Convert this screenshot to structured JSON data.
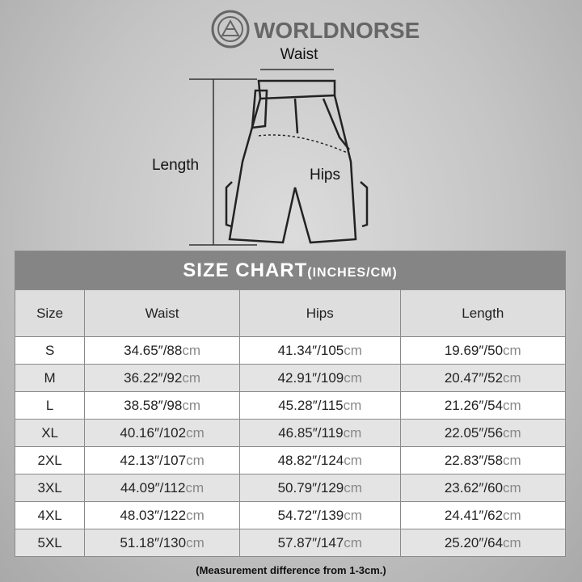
{
  "brand": "WORLDNORSE",
  "diagram": {
    "waist": "Waist",
    "length": "Length",
    "hips": "Hips"
  },
  "table": {
    "title": "SIZE CHART",
    "title_units": "(INCHES/CM)",
    "header": [
      "Size",
      "Waist",
      "Hips",
      "Length"
    ],
    "rows": [
      [
        "S",
        {
          "value": "34.65″/88",
          "unit": "cm"
        },
        {
          "value": "41.34″/105",
          "unit": "cm"
        },
        {
          "value": "19.69″/50",
          "unit": "cm"
        }
      ],
      [
        "M",
        {
          "value": "36.22″/92",
          "unit": "cm"
        },
        {
          "value": "42.91″/109",
          "unit": "cm"
        },
        {
          "value": "20.47″/52",
          "unit": "cm"
        }
      ],
      [
        "L",
        {
          "value": "38.58″/98",
          "unit": "cm"
        },
        {
          "value": "45.28″/115",
          "unit": "cm"
        },
        {
          "value": "21.26″/54",
          "unit": "cm"
        }
      ],
      [
        "XL",
        {
          "value": "40.16″/102",
          "unit": "cm"
        },
        {
          "value": "46.85″/119",
          "unit": "cm"
        },
        {
          "value": "22.05″/56",
          "unit": "cm"
        }
      ],
      [
        "2XL",
        {
          "value": "42.13″/107",
          "unit": "cm"
        },
        {
          "value": "48.82″/124",
          "unit": "cm"
        },
        {
          "value": "22.83″/58",
          "unit": "cm"
        }
      ],
      [
        "3XL",
        {
          "value": "44.09″/112",
          "unit": "cm"
        },
        {
          "value": "50.79″/129",
          "unit": "cm"
        },
        {
          "value": "23.62″/60",
          "unit": "cm"
        }
      ],
      [
        "4XL",
        {
          "value": "48.03″/122",
          "unit": "cm"
        },
        {
          "value": "54.72″/139",
          "unit": "cm"
        },
        {
          "value": "24.41″/62",
          "unit": "cm"
        }
      ],
      [
        "5XL",
        {
          "value": "51.18″/130",
          "unit": "cm"
        },
        {
          "value": "57.87″/147",
          "unit": "cm"
        },
        {
          "value": "25.20″/64",
          "unit": "cm"
        }
      ]
    ]
  },
  "footnote": "(Measurement difference from 1-3cm.)"
}
